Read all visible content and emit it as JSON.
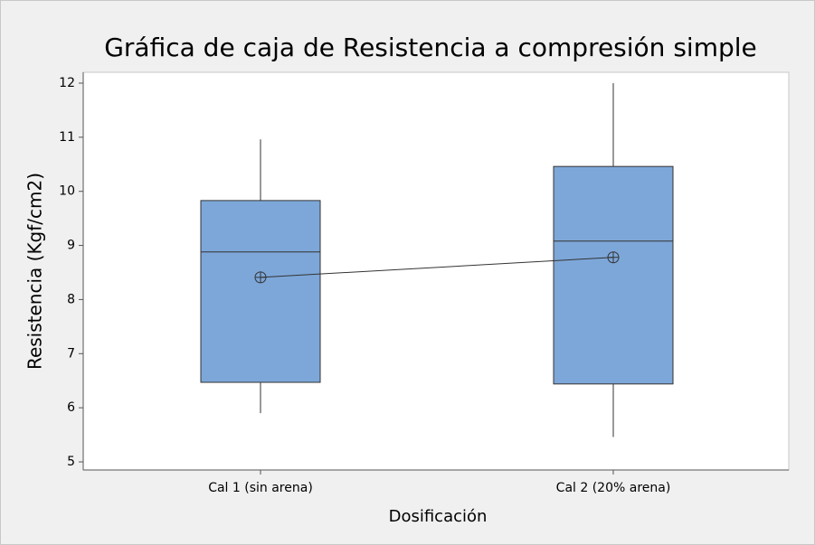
{
  "chart_data": {
    "type": "box",
    "title": "Gráfica de caja de Resistencia a compresión simple",
    "x_label": "Dosificación",
    "y_label": "Resistencia (Kgf/cm2)",
    "categories": [
      "Cal 1 (sin arena)",
      "Cal 2 (20% arena)"
    ],
    "color": "#7da7d9",
    "boxes": [
      {
        "low": 5.9,
        "q1": 6.47,
        "median": 8.88,
        "q3": 9.83,
        "high": 10.96,
        "mean": 8.41
      },
      {
        "low": 5.46,
        "q1": 6.44,
        "median": 9.08,
        "q3": 10.46,
        "high": 12,
        "mean": 8.78
      }
    ],
    "ylim": [
      4.85,
      12.2
    ],
    "yticks": [
      5,
      6,
      7,
      8,
      9,
      10,
      11,
      12
    ]
  }
}
